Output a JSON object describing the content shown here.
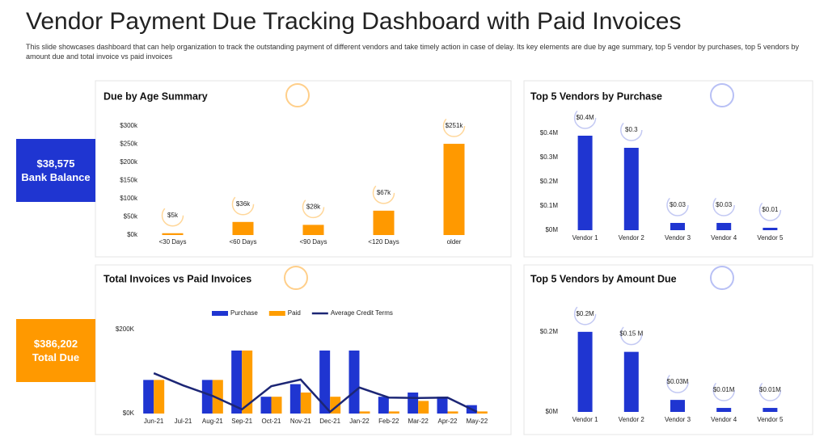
{
  "header": {
    "title": "Vendor Payment Due Tracking Dashboard with Paid Invoices",
    "subtitle": "This slide showcases dashboard that can help organization to track the outstanding payment of different vendors and take timely action in case of delay. Its key elements are due by age summary, top 5 vendor by purchases, top 5 vendors by amount due and total invoice vs paid invoices"
  },
  "kpis": [
    {
      "value": "$38,575",
      "label": "Bank Balance",
      "color": "#1f35d1"
    },
    {
      "value": "$386,202",
      "label": "Total Due",
      "color": "#ff9900"
    }
  ],
  "chart_data": [
    {
      "type": "bar",
      "title": "Due by Age Summary",
      "categories": [
        "<30 Days",
        "<60 Days",
        "<90 Days",
        "<120 Days",
        "older"
      ],
      "values": [
        5000,
        36000,
        28000,
        67000,
        251000
      ],
      "value_labels": [
        "$5k",
        "$36k",
        "$28k",
        "$67k",
        "$251k"
      ],
      "color": "#ff9900",
      "ylim": [
        0,
        300000
      ],
      "yticks": [
        {
          "value": 0,
          "label": "$0k"
        },
        {
          "value": 50000,
          "label": "$50k"
        },
        {
          "value": 100000,
          "label": "$100k"
        },
        {
          "value": 150000,
          "label": "$150k"
        },
        {
          "value": 200000,
          "label": "$200k"
        },
        {
          "value": 250000,
          "label": "$250k"
        },
        {
          "value": 300000,
          "label": "$300k"
        }
      ]
    },
    {
      "type": "bar",
      "title": "Top 5 Vendors by Purchase",
      "categories": [
        "Vendor 1",
        "Vendor 2",
        "Vendor 3",
        "Vendor 4",
        "Vendor 5"
      ],
      "values": [
        390000,
        340000,
        30000,
        30000,
        10000
      ],
      "value_labels": [
        "$0.4M",
        "$0.3",
        "$0.03",
        "$0.03",
        "$0.01"
      ],
      "color": "#1f35d1",
      "ylim": [
        0,
        450000
      ],
      "yticks": [
        {
          "value": 0,
          "label": "$0M"
        },
        {
          "value": 100000,
          "label": "$0.1M"
        },
        {
          "value": 200000,
          "label": "$0.2M"
        },
        {
          "value": 300000,
          "label": "$0.3M"
        },
        {
          "value": 400000,
          "label": "$0.4M"
        }
      ]
    },
    {
      "type": "combo",
      "title": "Total Invoices vs Paid Invoices",
      "categories": [
        "Jun-21",
        "Jul-21",
        "Aug-21",
        "Sep-21",
        "Oct-21",
        "Nov-21",
        "Dec-21",
        "Jan-22",
        "Feb-22",
        "Mar-22",
        "Apr-22",
        "May-22"
      ],
      "series": [
        {
          "name": "Purchase",
          "color": "#1f35d1",
          "values": [
            80000,
            0,
            80000,
            150000,
            40000,
            70000,
            150000,
            150000,
            40000,
            50000,
            40000,
            20000
          ]
        },
        {
          "name": "Paid",
          "color": "#ff9d00",
          "values": [
            80000,
            0,
            80000,
            150000,
            40000,
            50000,
            40000,
            5000,
            5000,
            30000,
            5000,
            5000
          ]
        },
        {
          "name": "Average Credit Terms",
          "color": "#1c2675",
          "line": true,
          "values": [
            96000,
            67000,
            42000,
            10000,
            65000,
            81000,
            4000,
            62000,
            38000,
            37000,
            38000,
            4000
          ]
        }
      ],
      "ylim": [
        0,
        225000
      ],
      "yticks": [
        {
          "value": 0,
          "label": "$0K"
        },
        {
          "value": 200000,
          "label": "$200K"
        }
      ]
    },
    {
      "type": "bar",
      "title": "Top 5 Vendors by Amount Due",
      "categories": [
        "Vendor 1",
        "Vendor 2",
        "Vendor 3",
        "Vendor 4",
        "Vendor 5"
      ],
      "values": [
        200000,
        150000,
        30000,
        10000,
        10000
      ],
      "value_labels": [
        "$0.2M",
        "$0.15 M",
        "$0.03M",
        "$0.01M",
        "$0.01M"
      ],
      "color": "#1f35d1",
      "ylim": [
        0,
        240000
      ],
      "yticks": [
        {
          "value": 0,
          "label": "$0M"
        },
        {
          "value": 200000,
          "label": "$0.2M"
        }
      ]
    }
  ]
}
